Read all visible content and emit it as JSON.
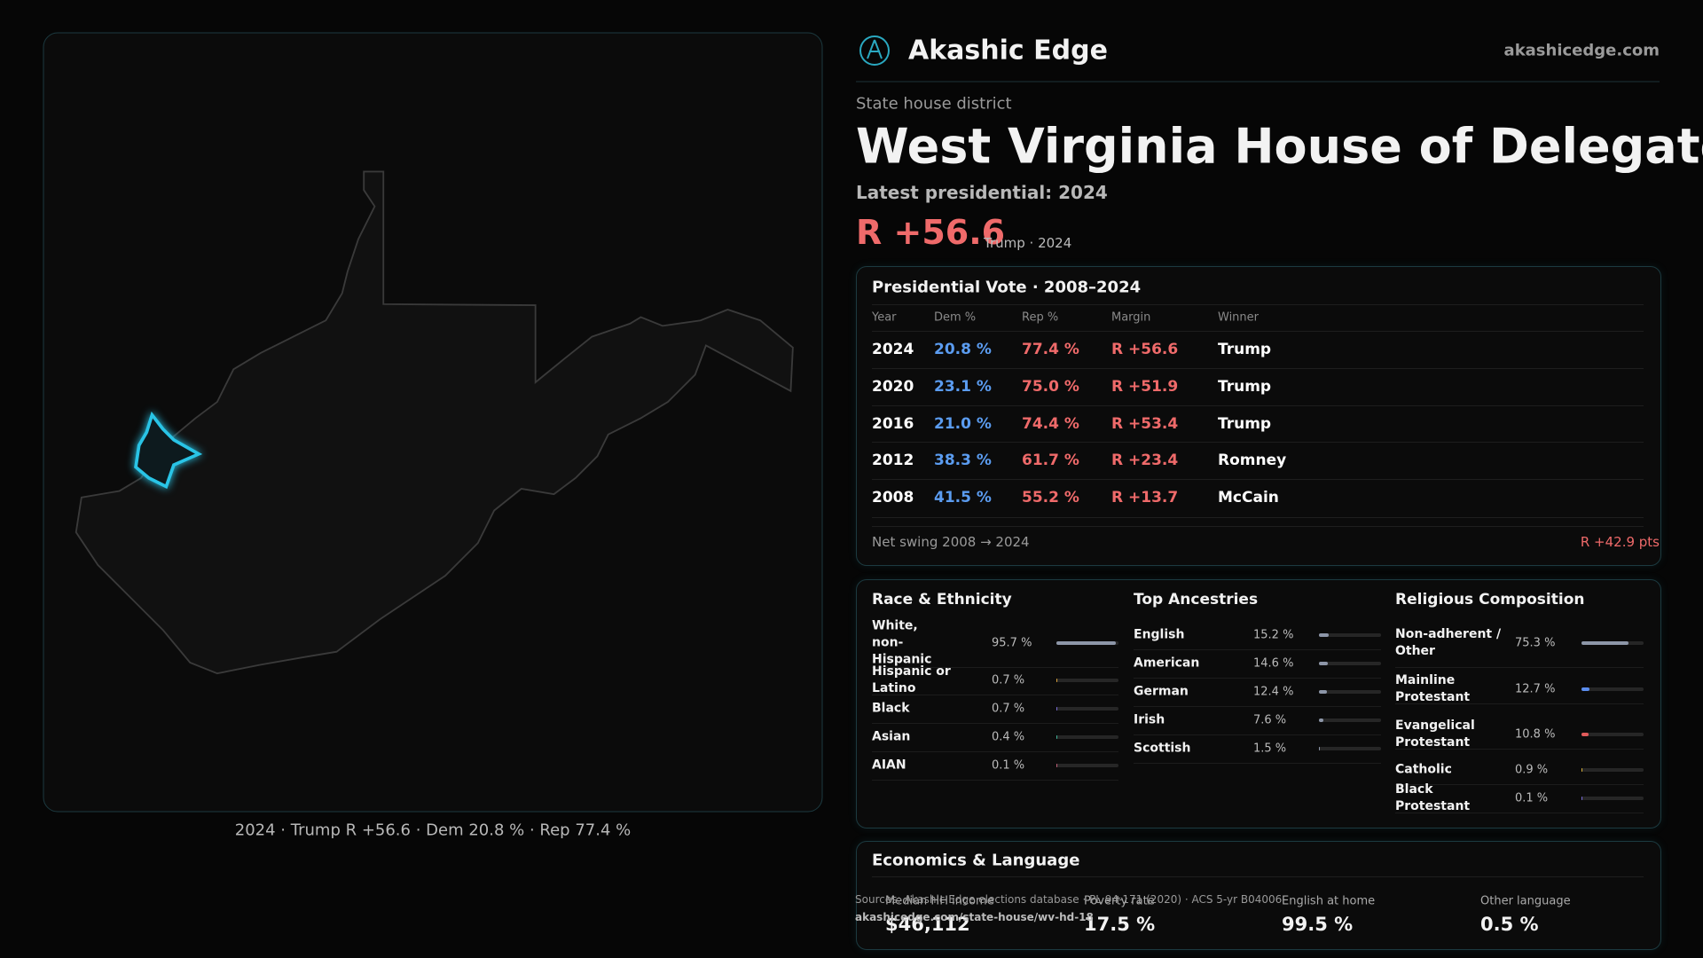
{
  "header": {
    "brand": "Akashic Edge",
    "domain": "akashicedge.com"
  },
  "district": {
    "kicker": "State house district",
    "title": "West Virginia House of Delegates Distr",
    "latest": "Latest presidential: 2024",
    "margin": "R +56.6",
    "margin_note": "Trump · 2024"
  },
  "map": {
    "caption": "2024 · Trump R +56.6 · Dem 20.8 % · Rep 77.4 %"
  },
  "presidential": {
    "title": "Presidential Vote · 2008–2024",
    "columns": [
      "Year",
      "Dem %",
      "Rep %",
      "Margin",
      "Winner"
    ],
    "rows": [
      [
        "2024",
        "20.8 %",
        "77.4 %",
        "R +56.6",
        "Trump"
      ],
      [
        "2020",
        "23.1 %",
        "75.0 %",
        "R +51.9",
        "Trump"
      ],
      [
        "2016",
        "21.0 %",
        "74.4 %",
        "R +53.4",
        "Trump"
      ],
      [
        "2012",
        "38.3 %",
        "61.7 %",
        "R +23.4",
        "Romney"
      ],
      [
        "2008",
        "41.5 %",
        "55.2 %",
        "R +13.7",
        "McCain"
      ]
    ],
    "swing_label": "Net swing 2008 → 2024",
    "swing_value": "R +42.9 pts"
  },
  "race": {
    "title": "Race & Ethnicity",
    "items": [
      {
        "label": "White, non-Hispanic",
        "value": 95.7,
        "value_label": "95.7 %",
        "color": "#8d96a8"
      },
      {
        "label": "Hispanic or Latino",
        "value": 0.7,
        "value_label": "0.7 %",
        "color": "#d9a23a"
      },
      {
        "label": "Black",
        "value": 0.7,
        "value_label": "0.7 %",
        "color": "#7a6cd8"
      },
      {
        "label": "Asian",
        "value": 0.4,
        "value_label": "0.4 %",
        "color": "#3fb49a"
      },
      {
        "label": "AIAN",
        "value": 0.1,
        "value_label": "0.1 %",
        "color": "#c0607a"
      }
    ]
  },
  "ancestry": {
    "title": "Top Ancestries",
    "items": [
      {
        "label": "English",
        "value": 15.2,
        "value_label": "15.2 %",
        "color": "#8d96a8"
      },
      {
        "label": "American",
        "value": 14.6,
        "value_label": "14.6 %",
        "color": "#8d96a8"
      },
      {
        "label": "German",
        "value": 12.4,
        "value_label": "12.4 %",
        "color": "#8d96a8"
      },
      {
        "label": "Irish",
        "value": 7.6,
        "value_label": "7.6 %",
        "color": "#8d96a8"
      },
      {
        "label": "Scottish",
        "value": 1.5,
        "value_label": "1.5 %",
        "color": "#8d96a8"
      }
    ]
  },
  "religion": {
    "title": "Religious Composition",
    "items": [
      {
        "label": "Non-adherent / Other",
        "value": 75.3,
        "value_label": "75.3 %",
        "color": "#8d96a8"
      },
      {
        "label": "Mainline Protestant",
        "value": 12.7,
        "value_label": "12.7 %",
        "color": "#5b8def"
      },
      {
        "label": "Evangelical Protestant",
        "value": 10.8,
        "value_label": "10.8 %",
        "color": "#e05a5a"
      },
      {
        "label": "Catholic",
        "value": 0.9,
        "value_label": "0.9 %",
        "color": "#d9b23a"
      },
      {
        "label": "Black Protestant",
        "value": 0.1,
        "value_label": "0.1 %",
        "color": "#7a6cd8"
      }
    ]
  },
  "economics": {
    "title": "Economics & Language",
    "stats": [
      {
        "label": "Median HH income",
        "value": "$46,112"
      },
      {
        "label": "Poverty rate",
        "value": "17.5 %"
      },
      {
        "label": "English at home",
        "value": "99.5 %"
      },
      {
        "label": "Other language",
        "value": "0.5 %"
      }
    ]
  },
  "sources": {
    "text": "Sources: Akashic Edge elections database · PL 94-171 (2020) · ACS 5-yr B04006",
    "url": "akashicedge.com/state-house/wv-hd-18"
  }
}
